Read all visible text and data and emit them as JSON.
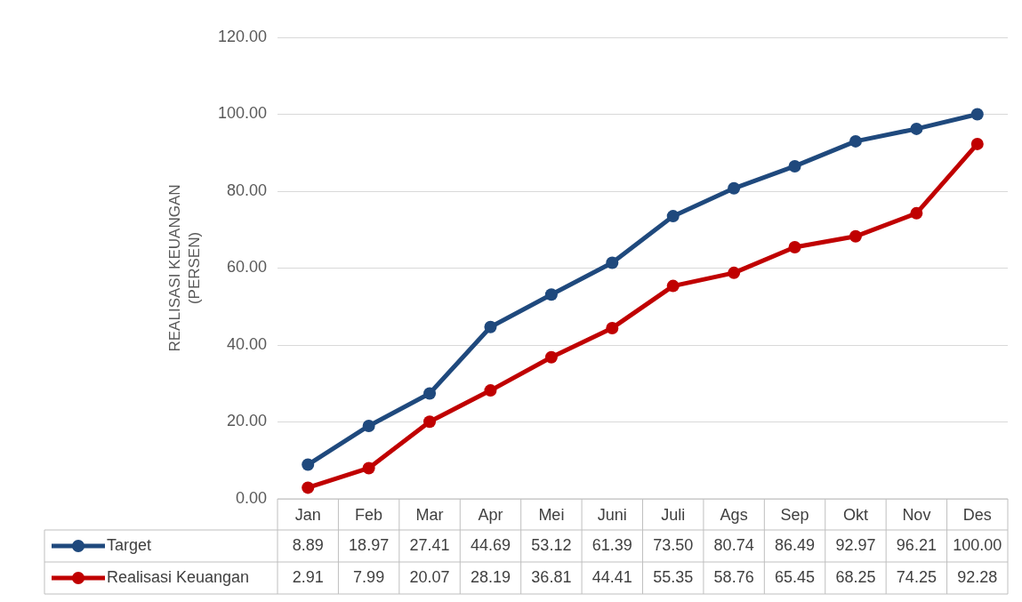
{
  "chart_data": {
    "type": "line",
    "ylabel": "REALISASI KEUANGAN\n(PERSEN)",
    "categories": [
      "Jan",
      "Feb",
      "Mar",
      "Apr",
      "Mei",
      "Juni",
      "Juli",
      "Ags",
      "Sep",
      "Okt",
      "Nov",
      "Des"
    ],
    "series": [
      {
        "name": "Target",
        "color": "#1f497d",
        "values": [
          8.89,
          18.97,
          27.41,
          44.69,
          53.12,
          61.39,
          73.5,
          80.74,
          86.49,
          92.97,
          96.21,
          100
        ],
        "value_labels": [
          "8.89",
          "18.97",
          "27.41",
          "44.69",
          "53.12",
          "61.39",
          "73.50",
          "80.74",
          "86.49",
          "92.97",
          "96.21",
          "100.00"
        ]
      },
      {
        "name": "Realisasi Keuangan",
        "color": "#c00000",
        "values": [
          2.91,
          7.99,
          20.07,
          28.19,
          36.81,
          44.41,
          55.35,
          58.76,
          65.45,
          68.25,
          74.25,
          92.28
        ],
        "value_labels": [
          "2.91",
          "7.99",
          "20.07",
          "28.19",
          "36.81",
          "44.41",
          "55.35",
          "58.76",
          "65.45",
          "68.25",
          "74.25",
          "92.28"
        ]
      }
    ],
    "ylim": [
      0,
      120
    ],
    "yticks": [
      {
        "value": 0,
        "label": "0.00"
      },
      {
        "value": 20,
        "label": "20.00"
      },
      {
        "value": 40,
        "label": "40.00"
      },
      {
        "value": 60,
        "label": "60.00"
      },
      {
        "value": 80,
        "label": "80.00"
      },
      {
        "value": 100,
        "label": "100.00"
      },
      {
        "value": 120,
        "label": "120.00"
      }
    ],
    "grid": "y",
    "legend": "bottom",
    "marker": "circle",
    "line_style": "solid"
  }
}
